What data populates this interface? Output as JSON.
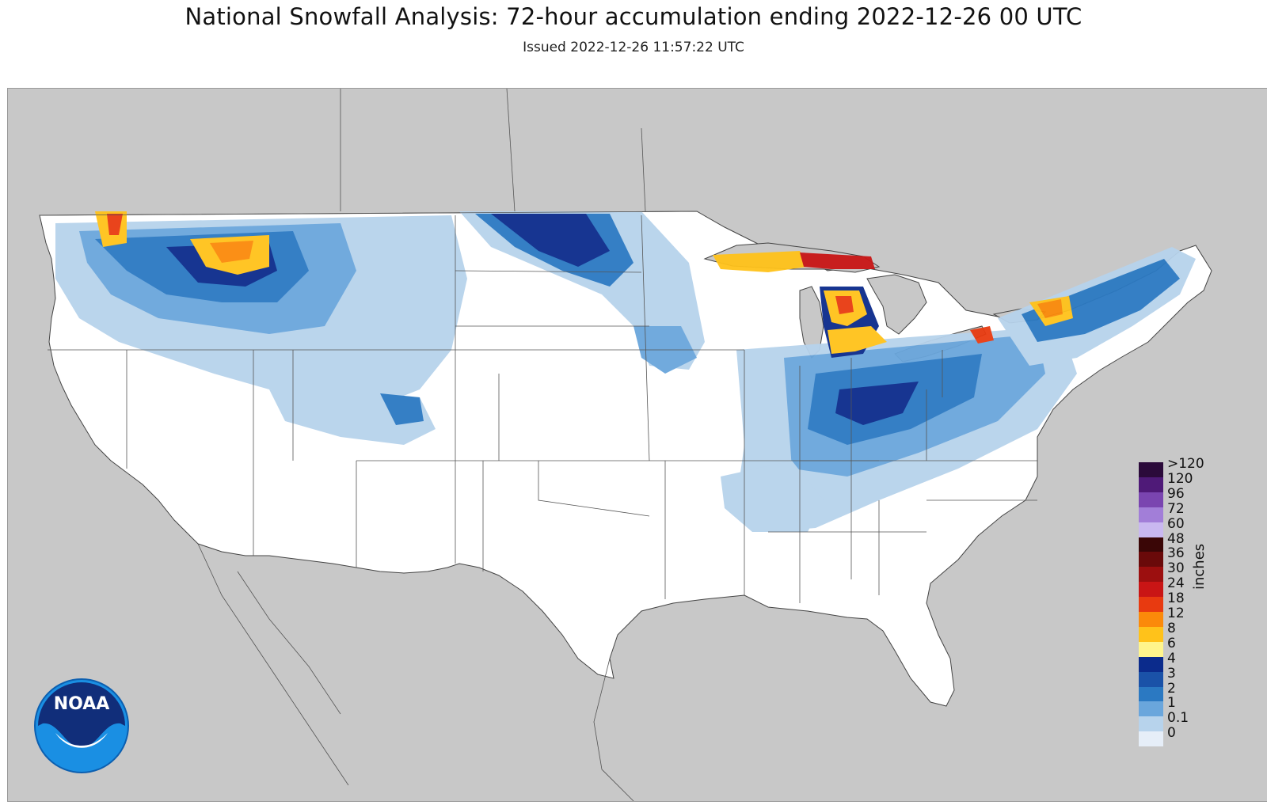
{
  "title": "National Snowfall Analysis: 72-hour accumulation ending 2022-12-26 00 UTC",
  "subtitle": "Issued 2022-12-26 11:57:22 UTC",
  "legend": {
    "units": "inches",
    "bins": [
      {
        "label": ">120",
        "color": "#2b0a3a"
      },
      {
        "label": "120",
        "color": "#4f1a78"
      },
      {
        "label": "96",
        "color": "#7a45b0"
      },
      {
        "label": "72",
        "color": "#a27ed8"
      },
      {
        "label": "60",
        "color": "#c9b8f0"
      },
      {
        "label": "48",
        "color": "#3a0606"
      },
      {
        "label": "36",
        "color": "#6a0a0a"
      },
      {
        "label": "30",
        "color": "#9c0f0f"
      },
      {
        "label": "24",
        "color": "#c91515"
      },
      {
        "label": "18",
        "color": "#e83a10"
      },
      {
        "label": "12",
        "color": "#fb8a0a"
      },
      {
        "label": "8",
        "color": "#ffc21a"
      },
      {
        "label": "6",
        "color": "#fff58c"
      },
      {
        "label": "4",
        "color": "#0b2b8c"
      },
      {
        "label": "3",
        "color": "#1a52a8"
      },
      {
        "label": "2",
        "color": "#2b79c2"
      },
      {
        "label": "1",
        "color": "#6aa6dc"
      },
      {
        "label": "0.1",
        "color": "#b7d3ec"
      },
      {
        "label": "0",
        "color": "#e6eef8"
      }
    ]
  },
  "logo_text": "NOAA",
  "colors": {
    "land": "#c8c8c8",
    "conus": "#ffffff",
    "water": "#c8c8c8",
    "border": "#666666"
  }
}
